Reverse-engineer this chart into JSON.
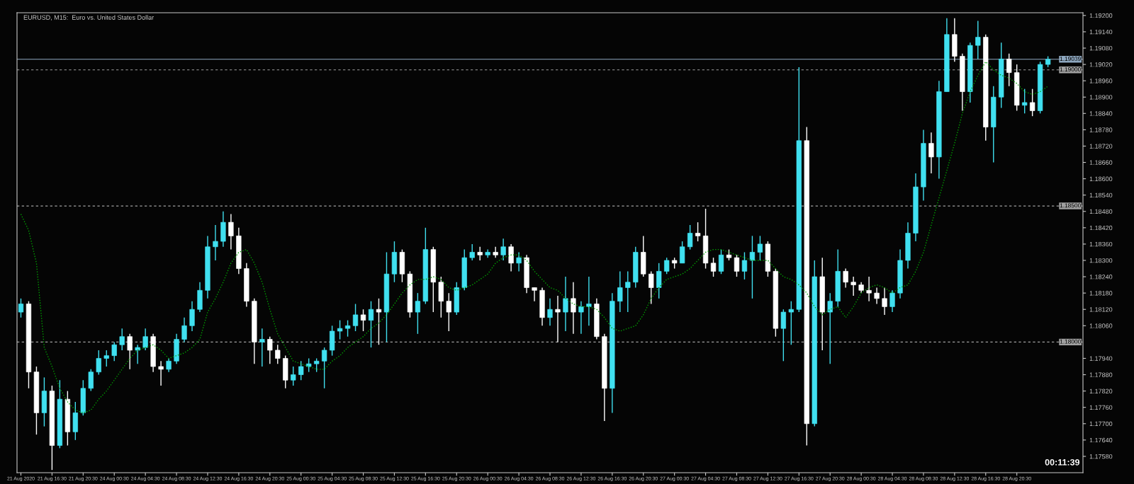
{
  "chart_data": {
    "type": "candlestick",
    "title": "EURUSD, M15:  Euro vs. United States Dollar",
    "annotations": [
      "00:11:39"
    ],
    "categories": [
      "21 Aug 2020",
      null,
      null,
      null,
      "21 Aug 16:30",
      null,
      null,
      null,
      "21 Aug 20:30",
      null,
      null,
      null,
      "24 Aug 00:30",
      null,
      null,
      null,
      "24 Aug 04:30",
      null,
      null,
      null,
      "24 Aug 08:30",
      null,
      null,
      null,
      "24 Aug 12:30",
      null,
      null,
      null,
      "24 Aug 16:30",
      null,
      null,
      null,
      "24 Aug 20:30",
      null,
      null,
      null,
      "25 Aug 00:30",
      null,
      null,
      null,
      "25 Aug 04:30",
      null,
      null,
      null,
      "25 Aug 08:30",
      null,
      null,
      null,
      "25 Aug 12:30",
      null,
      null,
      null,
      "25 Aug 16:30",
      null,
      null,
      null,
      "25 Aug 20:30",
      null,
      null,
      null,
      "26 Aug 00:30",
      null,
      null,
      null,
      "26 Aug 04:30",
      null,
      null,
      null,
      "26 Aug 08:30",
      null,
      null,
      null,
      "26 Aug 12:30",
      null,
      null,
      null,
      "26 Aug 16:30",
      null,
      null,
      null,
      "26 Aug 20:30",
      null,
      null,
      null,
      "27 Aug 00:30",
      null,
      null,
      null,
      "27 Aug 04:30",
      null,
      null,
      null,
      "27 Aug 08:30",
      null,
      null,
      null,
      "27 Aug 12:30",
      null,
      null,
      null,
      "27 Aug 16:30",
      null,
      null,
      null,
      "27 Aug 20:30",
      null,
      null,
      null,
      "28 Aug 00:30",
      null,
      null,
      null,
      "28 Aug 04:30",
      null,
      null,
      null,
      "28 Aug 08:30",
      null,
      null,
      null,
      "28 Aug 12:30",
      null,
      null,
      null,
      "28 Aug 16:30",
      null,
      null,
      null,
      "28 Aug 20:30",
      null,
      null,
      null,
      null
    ],
    "ohlc": [
      [
        1.1811,
        1.1816,
        1.1809,
        1.1814
      ],
      [
        1.1814,
        1.1815,
        1.1783,
        1.1789
      ],
      [
        1.1789,
        1.1791,
        1.1766,
        1.1774
      ],
      [
        1.1774,
        1.1787,
        1.1769,
        1.1782
      ],
      [
        1.1782,
        1.1784,
        1.1753,
        1.1762
      ],
      [
        1.1762,
        1.1786,
        1.1761,
        1.1779
      ],
      [
        1.1779,
        1.1782,
        1.1762,
        1.1767
      ],
      [
        1.1767,
        1.1778,
        1.1764,
        1.1774
      ],
      [
        1.1774,
        1.1786,
        1.1773,
        1.1783
      ],
      [
        1.1783,
        1.179,
        1.1782,
        1.1789
      ],
      [
        1.1789,
        1.1797,
        1.1788,
        1.1794
      ],
      [
        1.1794,
        1.1797,
        1.1791,
        1.1795
      ],
      [
        1.1795,
        1.18,
        1.1793,
        1.1799
      ],
      [
        1.1799,
        1.1805,
        1.1797,
        1.1802
      ],
      [
        1.1802,
        1.1803,
        1.179,
        1.1797
      ],
      [
        1.1797,
        1.1799,
        1.1792,
        1.1798
      ],
      [
        1.1798,
        1.1805,
        1.1797,
        1.1802
      ],
      [
        1.1802,
        1.1803,
        1.1789,
        1.1791
      ],
      [
        1.1791,
        1.1793,
        1.1784,
        1.179
      ],
      [
        1.179,
        1.1794,
        1.1789,
        1.1793
      ],
      [
        1.1793,
        1.1803,
        1.1792,
        1.1801
      ],
      [
        1.1801,
        1.1809,
        1.18,
        1.1806
      ],
      [
        1.1806,
        1.1815,
        1.1804,
        1.1812
      ],
      [
        1.1812,
        1.1822,
        1.1811,
        1.1819
      ],
      [
        1.1819,
        1.1839,
        1.1816,
        1.1835
      ],
      [
        1.1835,
        1.1843,
        1.183,
        1.1837
      ],
      [
        1.1837,
        1.1848,
        1.1835,
        1.1844
      ],
      [
        1.1844,
        1.1847,
        1.1834,
        1.1839
      ],
      [
        1.1839,
        1.1842,
        1.1825,
        1.1827
      ],
      [
        1.1827,
        1.1829,
        1.1813,
        1.1815
      ],
      [
        1.1815,
        1.1816,
        1.1792,
        1.18
      ],
      [
        1.18,
        1.1805,
        1.1791,
        1.1801
      ],
      [
        1.1801,
        1.1802,
        1.1792,
        1.1797
      ],
      [
        1.1797,
        1.1799,
        1.1792,
        1.1794
      ],
      [
        1.1794,
        1.1795,
        1.1783,
        1.1786
      ],
      [
        1.1786,
        1.1791,
        1.1784,
        1.1788
      ],
      [
        1.1788,
        1.1793,
        1.1786,
        1.1791
      ],
      [
        1.1791,
        1.1794,
        1.1789,
        1.1792
      ],
      [
        1.1792,
        1.1794,
        1.1789,
        1.1793
      ],
      [
        1.1793,
        1.1798,
        1.1783,
        1.1797
      ],
      [
        1.1797,
        1.1806,
        1.1795,
        1.1804
      ],
      [
        1.1804,
        1.1808,
        1.1801,
        1.1805
      ],
      [
        1.1805,
        1.1808,
        1.1802,
        1.1806
      ],
      [
        1.1806,
        1.1814,
        1.1804,
        1.181
      ],
      [
        1.181,
        1.1812,
        1.1804,
        1.1808
      ],
      [
        1.1808,
        1.1815,
        1.1798,
        1.1812
      ],
      [
        1.1812,
        1.1816,
        1.1799,
        1.1811
      ],
      [
        1.1811,
        1.1833,
        1.18,
        1.1825
      ],
      [
        1.1825,
        1.1837,
        1.1822,
        1.1833
      ],
      [
        1.1833,
        1.1834,
        1.1822,
        1.1825
      ],
      [
        1.1825,
        1.1826,
        1.1809,
        1.1811
      ],
      [
        1.1811,
        1.1818,
        1.1803,
        1.1815
      ],
      [
        1.1815,
        1.1842,
        1.1814,
        1.1834
      ],
      [
        1.1834,
        1.1835,
        1.1811,
        1.1822
      ],
      [
        1.1822,
        1.1824,
        1.1809,
        1.1815
      ],
      [
        1.1815,
        1.1818,
        1.1804,
        1.1811
      ],
      [
        1.1811,
        1.1822,
        1.181,
        1.182
      ],
      [
        1.182,
        1.1834,
        1.1819,
        1.1831
      ],
      [
        1.1831,
        1.1836,
        1.183,
        1.1833
      ],
      [
        1.1833,
        1.1835,
        1.183,
        1.1832
      ],
      [
        1.1832,
        1.1834,
        1.1831,
        1.1833
      ],
      [
        1.1833,
        1.1835,
        1.1831,
        1.1832
      ],
      [
        1.1832,
        1.1838,
        1.183,
        1.1835
      ],
      [
        1.1835,
        1.1836,
        1.1826,
        1.1829
      ],
      [
        1.1829,
        1.1833,
        1.1826,
        1.1831
      ],
      [
        1.1831,
        1.1832,
        1.1818,
        1.182
      ],
      [
        1.182,
        1.182,
        1.1815,
        1.1819
      ],
      [
        1.1819,
        1.182,
        1.1806,
        1.1809
      ],
      [
        1.1809,
        1.1816,
        1.1806,
        1.1812
      ],
      [
        1.1812,
        1.1817,
        1.18,
        1.1811
      ],
      [
        1.1811,
        1.1824,
        1.1804,
        1.1816
      ],
      [
        1.1816,
        1.1822,
        1.1803,
        1.1811
      ],
      [
        1.1811,
        1.1815,
        1.1803,
        1.1813
      ],
      [
        1.1813,
        1.1824,
        1.1806,
        1.1814
      ],
      [
        1.1814,
        1.1816,
        1.1801,
        1.1802
      ],
      [
        1.1802,
        1.1803,
        1.1771,
        1.1783
      ],
      [
        1.1783,
        1.1818,
        1.1774,
        1.1815
      ],
      [
        1.1815,
        1.1826,
        1.1811,
        1.182
      ],
      [
        1.182,
        1.1826,
        1.1811,
        1.1822
      ],
      [
        1.1822,
        1.1835,
        1.182,
        1.1833
      ],
      [
        1.1833,
        1.1839,
        1.1824,
        1.1825
      ],
      [
        1.1825,
        1.1826,
        1.1814,
        1.182
      ],
      [
        1.182,
        1.1829,
        1.1816,
        1.1826
      ],
      [
        1.1826,
        1.1831,
        1.1825,
        1.183
      ],
      [
        1.183,
        1.1831,
        1.1827,
        1.1829
      ],
      [
        1.1829,
        1.1837,
        1.1829,
        1.1835
      ],
      [
        1.1835,
        1.1843,
        1.1834,
        1.184
      ],
      [
        1.184,
        1.1844,
        1.1837,
        1.1839
      ],
      [
        1.1839,
        1.1849,
        1.1827,
        1.1829
      ],
      [
        1.1829,
        1.1831,
        1.1824,
        1.1826
      ],
      [
        1.1826,
        1.1834,
        1.1825,
        1.1832
      ],
      [
        1.1832,
        1.1834,
        1.183,
        1.1831
      ],
      [
        1.1831,
        1.1832,
        1.1824,
        1.1826
      ],
      [
        1.1826,
        1.1833,
        1.1823,
        1.183
      ],
      [
        1.183,
        1.1839,
        1.1816,
        1.1833
      ],
      [
        1.1833,
        1.1839,
        1.183,
        1.1836
      ],
      [
        1.1836,
        1.1837,
        1.1824,
        1.1826
      ],
      [
        1.1826,
        1.1827,
        1.1802,
        1.1805
      ],
      [
        1.1805,
        1.1812,
        1.1793,
        1.1811
      ],
      [
        1.1811,
        1.1815,
        1.1799,
        1.1812
      ],
      [
        1.1812,
        1.1901,
        1.1811,
        1.1874
      ],
      [
        1.1874,
        1.1879,
        1.1762,
        1.177
      ],
      [
        1.177,
        1.183,
        1.1769,
        1.1824
      ],
      [
        1.1824,
        1.1831,
        1.1797,
        1.1811
      ],
      [
        1.1811,
        1.1818,
        1.1792,
        1.1815
      ],
      [
        1.1815,
        1.1834,
        1.1813,
        1.1826
      ],
      [
        1.1826,
        1.1827,
        1.182,
        1.1822
      ],
      [
        1.1822,
        1.1824,
        1.1817,
        1.1821
      ],
      [
        1.1821,
        1.1822,
        1.1818,
        1.1819
      ],
      [
        1.1819,
        1.1824,
        1.1815,
        1.1818
      ],
      [
        1.1818,
        1.182,
        1.1814,
        1.1816
      ],
      [
        1.1816,
        1.182,
        1.181,
        1.1813
      ],
      [
        1.1813,
        1.1819,
        1.1811,
        1.1818
      ],
      [
        1.1818,
        1.1834,
        1.1816,
        1.183
      ],
      [
        1.183,
        1.1844,
        1.1827,
        1.184
      ],
      [
        1.184,
        1.1862,
        1.1837,
        1.1857
      ],
      [
        1.1857,
        1.1878,
        1.1852,
        1.1873
      ],
      [
        1.1873,
        1.1877,
        1.1862,
        1.1868
      ],
      [
        1.1868,
        1.1896,
        1.186,
        1.1892
      ],
      [
        1.1892,
        1.1919,
        1.1892,
        1.1913
      ],
      [
        1.1913,
        1.1919,
        1.1903,
        1.1905
      ],
      [
        1.1905,
        1.1906,
        1.1885,
        1.1892
      ],
      [
        1.1892,
        1.191,
        1.1888,
        1.1909
      ],
      [
        1.1909,
        1.1918,
        1.1904,
        1.1912
      ],
      [
        1.1912,
        1.1913,
        1.1874,
        1.1879
      ],
      [
        1.1879,
        1.1894,
        1.1866,
        1.189
      ],
      [
        1.189,
        1.191,
        1.1886,
        1.1904
      ],
      [
        1.1904,
        1.1906,
        1.1894,
        1.1899
      ],
      [
        1.1899,
        1.1902,
        1.1885,
        1.1887
      ],
      [
        1.1887,
        1.1893,
        1.1884,
        1.1888
      ],
      [
        1.1888,
        1.1893,
        1.1883,
        1.1885
      ],
      [
        1.1885,
        1.1903,
        1.1884,
        1.1902
      ],
      [
        1.1902,
        1.1905,
        1.1901,
        1.19039
      ]
    ],
    "colors": [
      "#40e0f0",
      "#ffffff",
      "#ffffff",
      "#40e0f0",
      "#ffffff",
      "#40e0f0",
      "#ffffff",
      "#40e0f0",
      "#40e0f0",
      "#40e0f0",
      "#40e0f0",
      "#40e0f0",
      "#40e0f0",
      "#40e0f0",
      "#ffffff",
      "#40e0f0",
      "#40e0f0",
      "#ffffff",
      "#ffffff",
      "#40e0f0",
      "#40e0f0",
      "#40e0f0",
      "#40e0f0",
      "#40e0f0",
      "#40e0f0",
      "#40e0f0",
      "#40e0f0",
      "#ffffff",
      "#ffffff",
      "#ffffff",
      "#ffffff",
      "#40e0f0",
      "#ffffff",
      "#ffffff",
      "#ffffff",
      "#40e0f0",
      "#40e0f0",
      "#40e0f0",
      "#40e0f0",
      "#40e0f0",
      "#40e0f0",
      "#40e0f0",
      "#40e0f0",
      "#40e0f0",
      "#ffffff",
      "#40e0f0",
      "#ffffff",
      "#40e0f0",
      "#40e0f0",
      "#ffffff",
      "#ffffff",
      "#40e0f0",
      "#40e0f0",
      "#ffffff",
      "#ffffff",
      "#ffffff",
      "#40e0f0",
      "#40e0f0",
      "#40e0f0",
      "#ffffff",
      "#40e0f0",
      "#ffffff",
      "#40e0f0",
      "#ffffff",
      "#40e0f0",
      "#ffffff",
      "#ffffff",
      "#ffffff",
      "#40e0f0",
      "#ffffff",
      "#40e0f0",
      "#ffffff",
      "#40e0f0",
      "#40e0f0",
      "#ffffff",
      "#ffffff",
      "#40e0f0",
      "#40e0f0",
      "#40e0f0",
      "#40e0f0",
      "#ffffff",
      "#ffffff",
      "#40e0f0",
      "#40e0f0",
      "#ffffff",
      "#40e0f0",
      "#40e0f0",
      "#ffffff",
      "#ffffff",
      "#ffffff",
      "#40e0f0",
      "#ffffff",
      "#ffffff",
      "#40e0f0",
      "#40e0f0",
      "#40e0f0",
      "#ffffff",
      "#ffffff",
      "#40e0f0",
      "#40e0f0",
      "#40e0f0",
      "#ffffff",
      "#40e0f0",
      "#ffffff",
      "#40e0f0",
      "#40e0f0",
      "#ffffff",
      "#ffffff",
      "#ffffff",
      "#ffffff",
      "#ffffff",
      "#ffffff",
      "#40e0f0",
      "#40e0f0",
      "#40e0f0",
      "#40e0f0",
      "#40e0f0",
      "#ffffff",
      "#40e0f0",
      "#40e0f0",
      "#ffffff",
      "#ffffff",
      "#40e0f0",
      "#40e0f0",
      "#ffffff",
      "#40e0f0",
      "#40e0f0",
      "#ffffff",
      "#ffffff",
      "#40e0f0",
      "#ffffff",
      "#40e0f0",
      "#40e0f0"
    ],
    "series": [
      {
        "type": "line",
        "color": "#00a000",
        "line_style": "dotted",
        "values": [
          1.1847,
          1.1841,
          1.1829,
          1.1798,
          1.1791,
          1.1783,
          1.1778,
          1.1775,
          1.1774,
          1.1775,
          1.1779,
          1.1782,
          1.1786,
          1.179,
          1.1794,
          1.1797,
          1.1798,
          1.1799,
          1.1797,
          1.1794,
          1.1795,
          1.1796,
          1.1798,
          1.1801,
          1.1811,
          1.1816,
          1.1822,
          1.1829,
          1.1833,
          1.1834,
          1.1829,
          1.1822,
          1.1812,
          1.1803,
          1.1798,
          1.1793,
          1.1792,
          1.1791,
          1.179,
          1.179,
          1.1793,
          1.1795,
          1.1798,
          1.18,
          1.1802,
          1.1805,
          1.1807,
          1.181,
          1.1814,
          1.1818,
          1.1821,
          1.1823,
          1.1823,
          1.1824,
          1.1823,
          1.182,
          1.1819,
          1.182,
          1.1821,
          1.1823,
          1.1825,
          1.1829,
          1.1831,
          1.1832,
          1.1832,
          1.183,
          1.1826,
          1.1823,
          1.182,
          1.1819,
          1.1816,
          1.1814,
          1.1813,
          1.1813,
          1.1812,
          1.1809,
          1.1805,
          1.1804,
          1.1805,
          1.1806,
          1.181,
          1.1816,
          1.182,
          1.1823,
          1.1824,
          1.1825,
          1.1827,
          1.183,
          1.1833,
          1.1834,
          1.1834,
          1.1833,
          1.1832,
          1.1831,
          1.183,
          1.183,
          1.183,
          1.1827,
          1.1824,
          1.1823,
          1.1821,
          1.1818,
          1.1813,
          1.181,
          1.1812,
          1.1813,
          1.1809,
          1.1813,
          1.1818,
          1.182,
          1.1821,
          1.182,
          1.1818,
          1.182,
          1.1821,
          1.1826,
          1.1833,
          1.1843,
          1.1853,
          1.1863,
          1.1873,
          1.1884,
          1.1892,
          1.1898,
          1.1903,
          1.19,
          1.1898,
          1.1897,
          1.1895,
          1.1892,
          1.1891,
          1.1892,
          1.1894
        ]
      }
    ],
    "ylim": [
      1.1752,
      1.1921
    ],
    "yticks": [
      {
        "value": 1.192,
        "label": "1.19200"
      },
      {
        "value": 1.1914,
        "label": "1.19140"
      },
      {
        "value": 1.1908,
        "label": "1.19080"
      },
      {
        "value": 1.1902,
        "label": "1.19020"
      },
      {
        "value": 1.1896,
        "label": "1.18960"
      },
      {
        "value": 1.189,
        "label": "1.18900"
      },
      {
        "value": 1.1884,
        "label": "1.18840"
      },
      {
        "value": 1.1878,
        "label": "1.18780"
      },
      {
        "value": 1.1872,
        "label": "1.18720"
      },
      {
        "value": 1.1866,
        "label": "1.18660"
      },
      {
        "value": 1.186,
        "label": "1.18600"
      },
      {
        "value": 1.1854,
        "label": "1.18540"
      },
      {
        "value": 1.1848,
        "label": "1.18480"
      },
      {
        "value": 1.1842,
        "label": "1.18420"
      },
      {
        "value": 1.1836,
        "label": "1.18360"
      },
      {
        "value": 1.183,
        "label": "1.18300"
      },
      {
        "value": 1.1824,
        "label": "1.18240"
      },
      {
        "value": 1.1818,
        "label": "1.18180"
      },
      {
        "value": 1.1812,
        "label": "1.18120"
      },
      {
        "value": 1.1806,
        "label": "1.18060"
      },
      {
        "value": 1.1794,
        "label": "1.17940"
      },
      {
        "value": 1.1788,
        "label": "1.17880"
      },
      {
        "value": 1.1782,
        "label": "1.17820"
      },
      {
        "value": 1.1776,
        "label": "1.17760"
      },
      {
        "value": 1.177,
        "label": "1.17700"
      },
      {
        "value": 1.1764,
        "label": "1.17640"
      },
      {
        "value": 1.1758,
        "label": "1.17580"
      }
    ],
    "ref_lines": [
      {
        "axis": "y",
        "value": 1.19039,
        "label": "1.19039",
        "color": "#8fa8c0",
        "line_style": "solid"
      },
      {
        "axis": "y",
        "value": 1.19,
        "label": "1.19000",
        "color": "#a0a0a0",
        "line_style": "dashed"
      },
      {
        "axis": "y",
        "value": 1.185,
        "label": "1.18500",
        "color": "#a0a0a0",
        "line_style": "dashed"
      },
      {
        "axis": "y",
        "value": 1.18,
        "label": "1.18000",
        "color": "#a0a0a0",
        "line_style": "dashed"
      }
    ],
    "grid": false,
    "legend": false
  }
}
